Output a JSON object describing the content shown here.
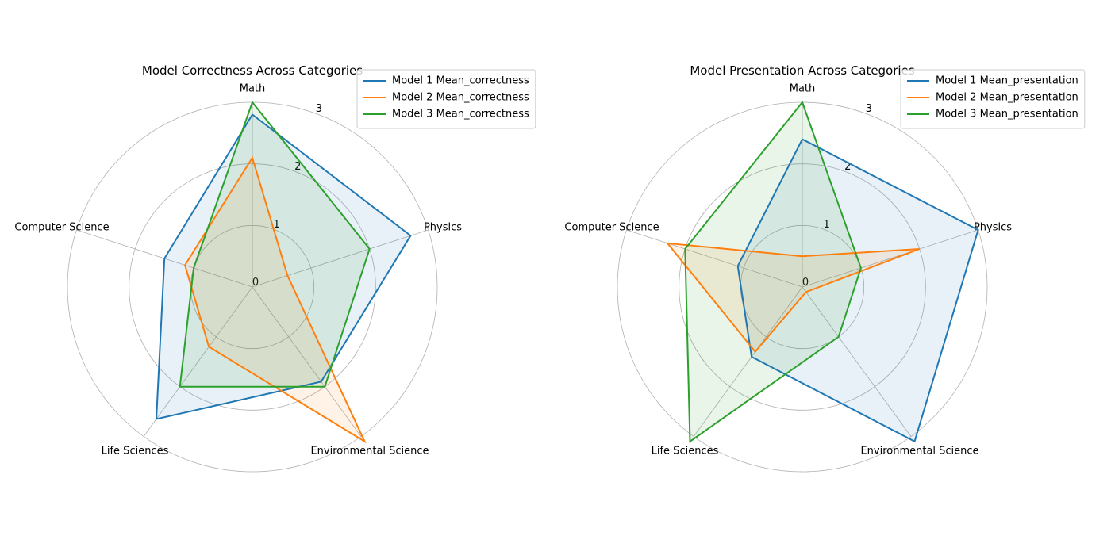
{
  "chart_data": [
    {
      "type": "radar",
      "title": "Model Correctness Across Categories",
      "categories": [
        "Math",
        "Physics",
        "Environmental Science",
        "Life Sciences",
        "Computer Science"
      ],
      "rmax": 3,
      "rticks": [
        "0",
        "1",
        "2",
        "3"
      ],
      "rtick_values": [
        0,
        1,
        2,
        3
      ],
      "grid": true,
      "legend_position": "top-right",
      "series": [
        {
          "name": "Model 1 Mean_correctness",
          "color": "#1f77b4",
          "values": [
            2.8,
            2.7,
            1.9,
            2.65,
            1.5
          ]
        },
        {
          "name": "Model 2 Mean_correctness",
          "color": "#ff7f0e",
          "values": [
            2.1,
            0.6,
            3.1,
            1.2,
            1.15
          ]
        },
        {
          "name": "Model 3 Mean_correctness",
          "color": "#2ca02c",
          "values": [
            3.0,
            2.0,
            2.0,
            2.0,
            1.0
          ]
        }
      ]
    },
    {
      "type": "radar",
      "title": "Model Presentation Across Categories",
      "categories": [
        "Math",
        "Physics",
        "Environmental Science",
        "Life Sciences",
        "Computer Science"
      ],
      "rmax": 3,
      "rticks": [
        "0",
        "1",
        "2",
        "3"
      ],
      "rtick_values": [
        0,
        1,
        2,
        3
      ],
      "grid": true,
      "legend_position": "top-right",
      "series": [
        {
          "name": "Model 1 Mean_presentation",
          "color": "#1f77b4",
          "values": [
            2.4,
            3.0,
            3.1,
            1.4,
            1.1
          ]
        },
        {
          "name": "Model 2 Mean_presentation",
          "color": "#ff7f0e",
          "values": [
            0.5,
            2.0,
            0.1,
            1.3,
            2.3
          ]
        },
        {
          "name": "Model 3 Mean_presentation",
          "color": "#2ca02c",
          "values": [
            3.0,
            1.0,
            1.0,
            3.1,
            2.0
          ]
        }
      ]
    }
  ]
}
